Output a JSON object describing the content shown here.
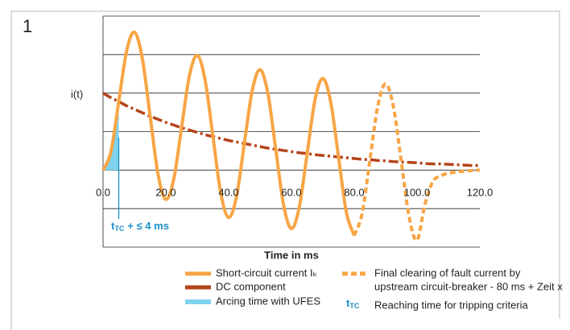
{
  "figure_number": "1",
  "chart_data": {
    "type": "line",
    "y_label": "i(t)",
    "x_label": "Time in ms",
    "xlim": [
      0,
      120
    ],
    "xticks": [
      {
        "value": 0,
        "label": "0.0"
      },
      {
        "value": 20,
        "label": "20.0"
      },
      {
        "value": 40,
        "label": "40.0"
      },
      {
        "value": 60,
        "label": "60.0"
      },
      {
        "value": 80,
        "label": "80.0"
      },
      {
        "value": 100,
        "label": "100.0"
      },
      {
        "value": 120,
        "label": "120.0"
      }
    ],
    "ylim": [
      -2,
      4
    ],
    "yticks": [
      -2,
      -1,
      0,
      1,
      2,
      3,
      4
    ],
    "grid": true,
    "x": [
      0,
      2.5,
      5,
      7.5,
      10,
      12.5,
      15,
      17.5,
      20,
      22.5,
      25,
      27.5,
      30,
      32.5,
      35,
      37.5,
      40,
      42.5,
      45,
      47.5,
      50,
      52.5,
      55,
      57.5,
      60,
      62.5,
      65,
      67.5,
      70,
      72.5,
      75,
      77.5,
      80,
      82.5,
      85,
      87.5,
      90,
      92.5,
      95,
      97.5,
      100,
      102.5,
      105,
      107.5,
      110,
      112.5,
      115,
      117.5,
      120
    ],
    "series": [
      {
        "name": "Short-circuit current Iₖ",
        "color": "#f7a545",
        "style": "solid",
        "values": [
          0,
          0.47,
          1.78,
          3.09,
          3.58,
          2.9,
          1.4,
          -0.1,
          -0.76,
          -0.24,
          1.1,
          2.45,
          2.98,
          2.34,
          0.87,
          -0.6,
          -1.23,
          -0.69,
          0.69,
          2.06,
          2.61,
          1.99,
          0.54,
          -0.91,
          -1.52,
          -0.96,
          0.43,
          1.82,
          2.38,
          1.77,
          0.34,
          -1.1,
          -1.7,
          null,
          null,
          null,
          null,
          null,
          null,
          null,
          null,
          null,
          null,
          null,
          null,
          null,
          null,
          null,
          null
        ]
      },
      {
        "name": "DC component",
        "color": "#b5441a",
        "style": "dashdot",
        "values": [
          2,
          1.88,
          1.78,
          1.67,
          1.58,
          1.49,
          1.4,
          1.32,
          1.24,
          1.17,
          1.1,
          1.04,
          0.98,
          0.92,
          0.87,
          0.82,
          0.77,
          0.73,
          0.69,
          0.65,
          0.61,
          0.57,
          0.54,
          0.51,
          0.48,
          0.45,
          0.43,
          0.4,
          0.38,
          0.36,
          0.34,
          0.32,
          0.3,
          0.28,
          0.27,
          0.25,
          0.24,
          0.22,
          0.21,
          0.2,
          0.19,
          0.17,
          0.16,
          0.16,
          0.15,
          0.14,
          0.13,
          0.12,
          0.12
        ]
      },
      {
        "name": [
          "Final clearing of fault current by",
          "upstream circuit-breaker - 80 ms + Zeit x"
        ],
        "color": "#f7a545",
        "style": "dashed",
        "values": [
          null,
          null,
          null,
          null,
          null,
          null,
          null,
          null,
          null,
          null,
          null,
          null,
          null,
          null,
          null,
          null,
          null,
          null,
          null,
          null,
          null,
          null,
          null,
          null,
          null,
          null,
          null,
          null,
          null,
          null,
          null,
          null,
          -1.7,
          -1.13,
          0.27,
          1.66,
          2.24,
          1.64,
          0.21,
          -1.22,
          -1.82,
          -0.9,
          -0.3,
          -0.15,
          -0.08,
          -0.05,
          -0.03,
          -0.01,
          0
        ]
      }
    ],
    "arcing": {
      "name": "Arcing time with UFES",
      "color": "#7fd3ee",
      "x_end": 5
    },
    "tripping": {
      "symbol": "t",
      "subscript": "TC",
      "text": "+ ≤ 4 ms",
      "legend": "Reaching time for tripping criteria",
      "color": "#1a8fc9"
    }
  }
}
